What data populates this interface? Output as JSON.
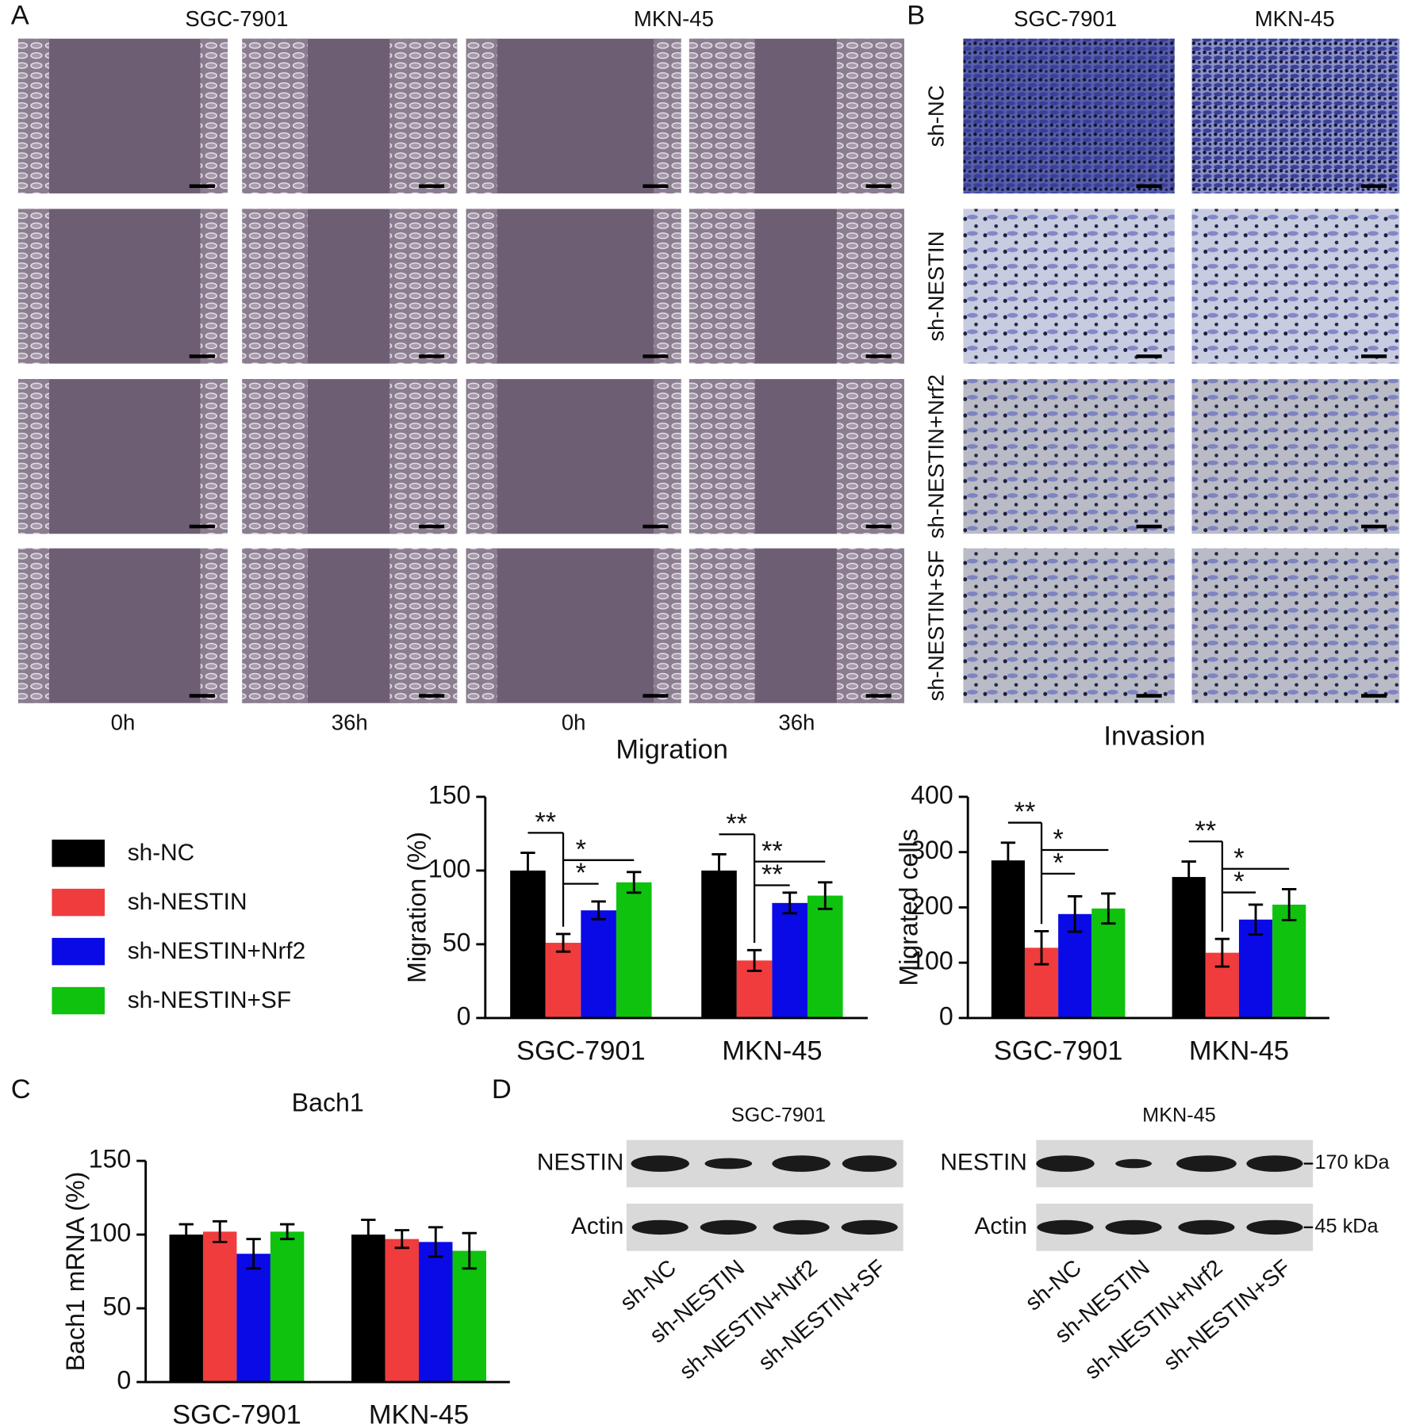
{
  "panel_labels": [
    "A",
    "B",
    "C",
    "D"
  ],
  "migration": {
    "cell_lines": [
      "SGC-7901",
      "MKN-45"
    ],
    "time_points": [
      "0h",
      "36h",
      "0h",
      "36h"
    ],
    "title": "Migration"
  },
  "invasion": {
    "cell_lines": [
      "SGC-7901",
      "MKN-45"
    ],
    "groups": [
      "sh-NC",
      "sh-NESTIN",
      "sh-NESTIN+Nrf2",
      "sh-NESTIN+SF"
    ],
    "title": "Invasion"
  },
  "chart_data": [
    {
      "type": "bar",
      "y_label": "Migration (%)",
      "categories": [
        "SGC-7901",
        "MKN-45"
      ],
      "ylim": [
        0,
        150
      ],
      "yticks": [
        0,
        50,
        100,
        150
      ],
      "series": [
        {
          "name": "sh-NC",
          "color": "#000000",
          "values": [
            100,
            100
          ],
          "errors": [
            12,
            11
          ]
        },
        {
          "name": "sh-NESTIN",
          "color": "#f03c3c",
          "values": [
            51,
            39
          ],
          "errors": [
            6,
            7
          ]
        },
        {
          "name": "sh-NESTIN+Nrf2",
          "color": "#0a0ae6",
          "values": [
            73,
            78
          ],
          "errors": [
            6,
            7
          ]
        },
        {
          "name": "sh-NESTIN+SF",
          "color": "#0ec20e",
          "values": [
            92,
            83
          ],
          "errors": [
            7,
            9
          ]
        }
      ],
      "significance": [
        [
          "**",
          "*",
          "*"
        ],
        [
          "**",
          "**",
          "**"
        ]
      ]
    },
    {
      "type": "bar",
      "y_label": "Migrated cells",
      "categories": [
        "SGC-7901",
        "MKN-45"
      ],
      "ylim": [
        0,
        400
      ],
      "yticks": [
        0,
        100,
        200,
        300,
        400
      ],
      "series": [
        {
          "color": "#000000",
          "values": [
            285,
            255
          ],
          "errors": [
            32,
            28
          ]
        },
        {
          "color": "#f03c3c",
          "values": [
            127,
            118
          ],
          "errors": [
            30,
            25
          ]
        },
        {
          "color": "#0a0ae6",
          "values": [
            188,
            178
          ],
          "errors": [
            32,
            27
          ]
        },
        {
          "color": "#0ec20e",
          "values": [
            198,
            205
          ],
          "errors": [
            27,
            28
          ]
        }
      ],
      "significance": [
        [
          "**",
          "*",
          "*"
        ],
        [
          "**",
          "*",
          "*"
        ]
      ]
    },
    {
      "type": "bar",
      "title": "Bach1",
      "y_label": "Bach1 mRNA (%)",
      "categories": [
        "SGC-7901",
        "MKN-45"
      ],
      "ylim": [
        0,
        150
      ],
      "yticks": [
        0,
        50,
        100,
        150
      ],
      "series": [
        {
          "color": "#000000",
          "values": [
            100,
            100
          ],
          "errors": [
            7,
            10
          ]
        },
        {
          "color": "#f03c3c",
          "values": [
            102,
            97
          ],
          "errors": [
            7,
            6
          ]
        },
        {
          "color": "#0a0ae6",
          "values": [
            87,
            95
          ],
          "errors": [
            10,
            10
          ]
        },
        {
          "color": "#0ec20e",
          "values": [
            102,
            89
          ],
          "errors": [
            5,
            12
          ]
        }
      ]
    }
  ],
  "western_blot": {
    "cell_lines": [
      "SGC-7901",
      "MKN-45"
    ],
    "proteins": [
      "NESTIN",
      "Actin"
    ],
    "markers": [
      "170 kDa",
      "45 kDa"
    ],
    "samples": [
      "sh-NC",
      "sh-NESTIN",
      "sh-NESTIN+Nrf2",
      "sh-NESTIN+SF"
    ]
  }
}
